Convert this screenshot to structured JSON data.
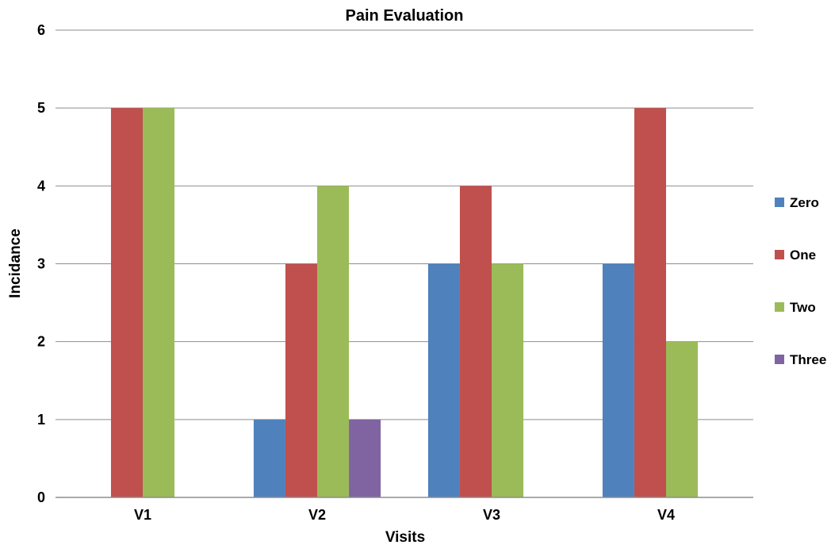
{
  "chart_data": {
    "type": "bar",
    "title": "Pain Evaluation",
    "xlabel": "Visits",
    "ylabel": "Incidance",
    "categories": [
      "V1",
      "V2",
      "V3",
      "V4"
    ],
    "series": [
      {
        "name": "Zero",
        "color": "#4f81bd",
        "values": [
          0,
          1,
          3,
          3
        ]
      },
      {
        "name": "One",
        "color": "#c0504d",
        "values": [
          5,
          3,
          4,
          5
        ]
      },
      {
        "name": "Two",
        "color": "#9bbb59",
        "values": [
          5,
          4,
          3,
          2
        ]
      },
      {
        "name": "Three",
        "color": "#8064a2",
        "values": [
          0,
          1,
          0,
          0
        ]
      }
    ],
    "ylim": [
      0,
      6
    ],
    "yticks": [
      "0",
      "1",
      "2",
      "3",
      "4",
      "5",
      "6"
    ],
    "grid": true,
    "legend_position": "right"
  }
}
